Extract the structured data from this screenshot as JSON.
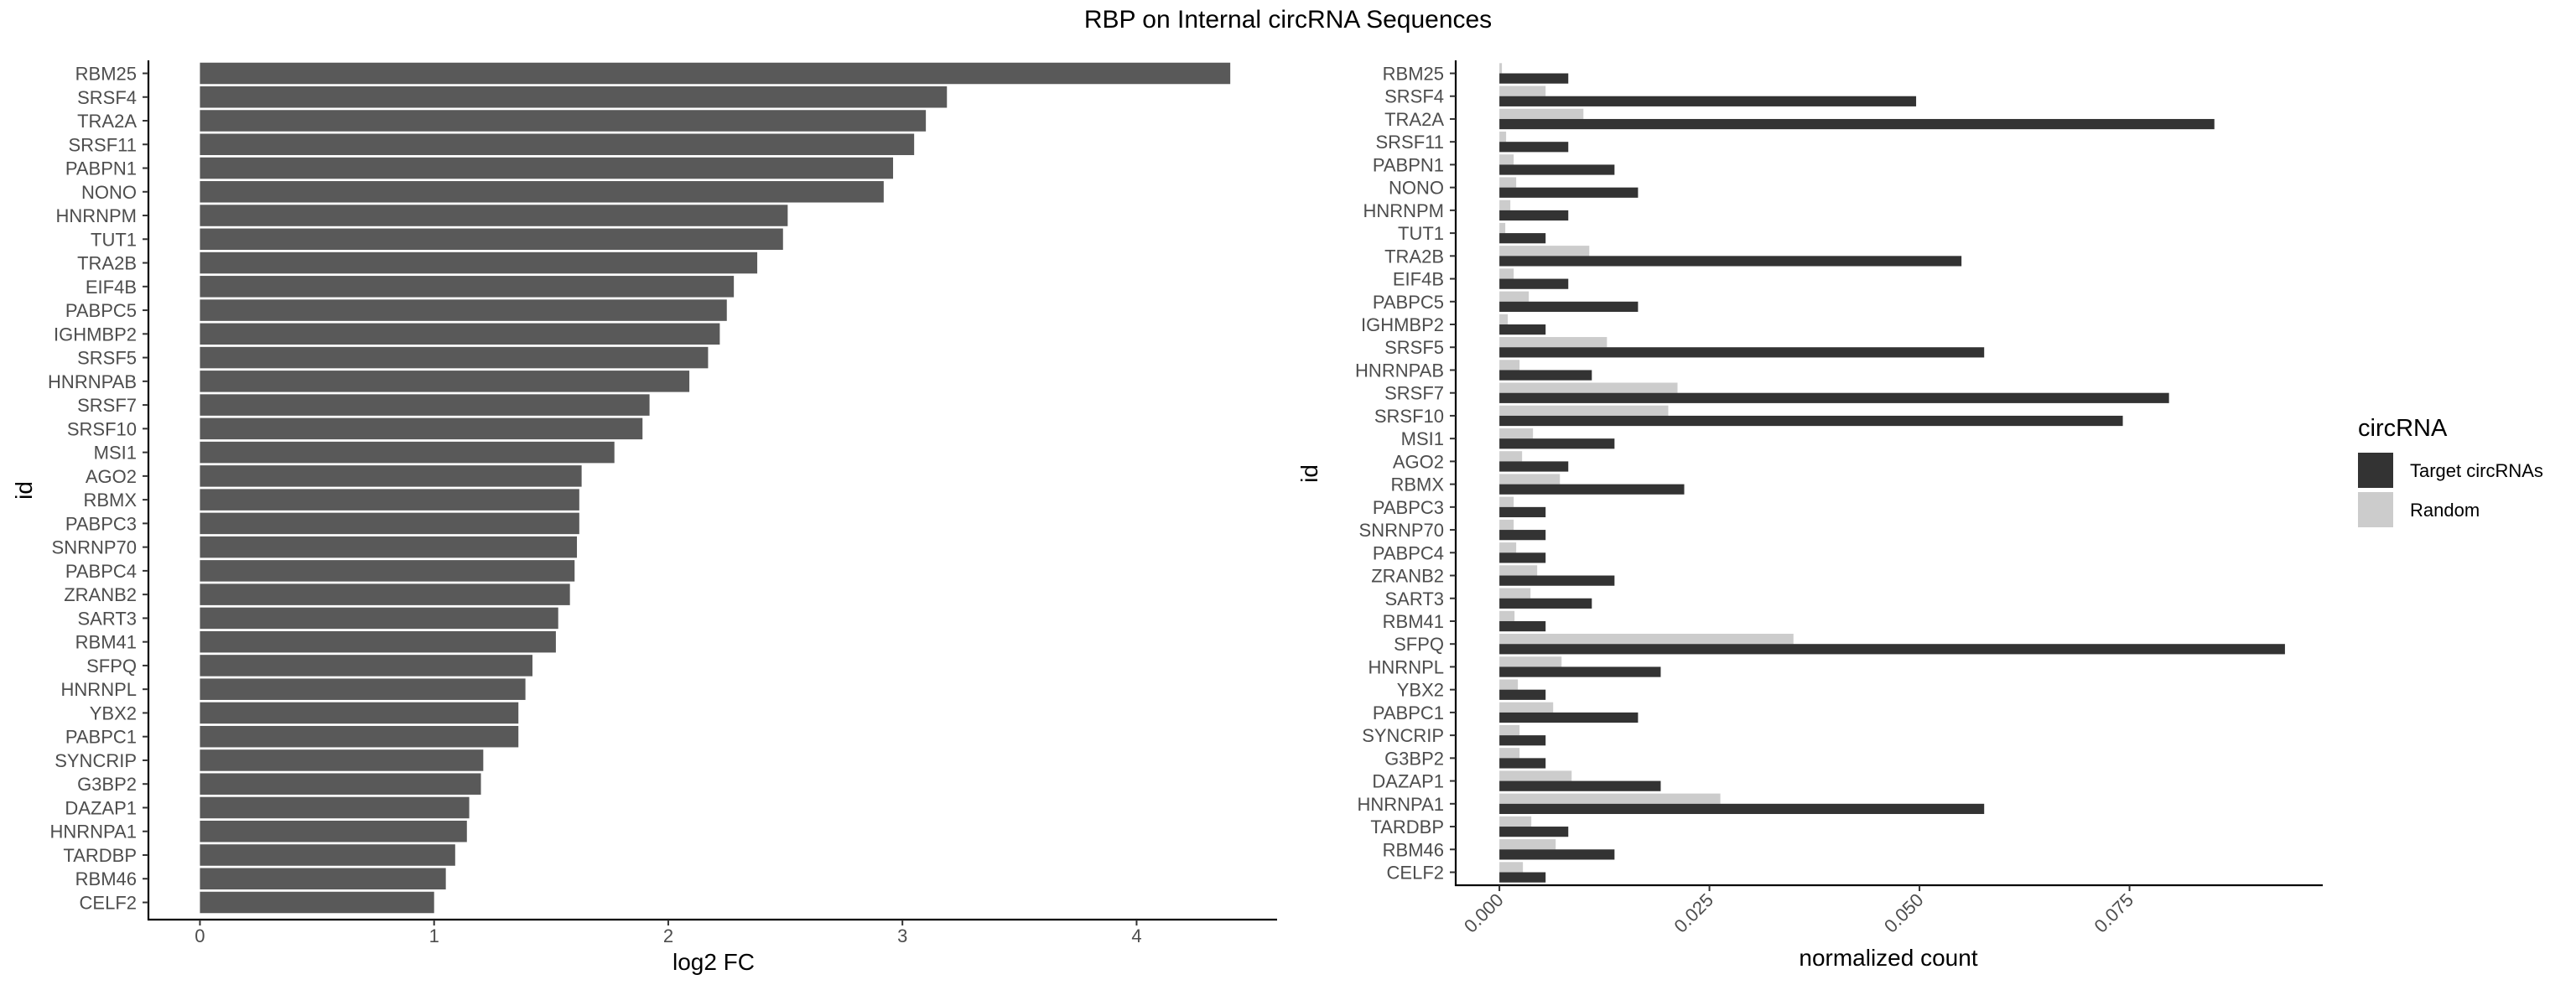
{
  "title": "RBP on Internal circRNA Sequences",
  "colors": {
    "left_bar": "#595959",
    "target": "#333333",
    "random": "#cccccc",
    "axis": "#000000",
    "tick_text": "#4d4d4d"
  },
  "chart_data": [
    {
      "type": "bar",
      "orientation": "horizontal",
      "categories": [
        "RBM25",
        "SRSF4",
        "TRA2A",
        "SRSF11",
        "PABPN1",
        "NONO",
        "HNRNPM",
        "TUT1",
        "TRA2B",
        "EIF4B",
        "PABPC5",
        "IGHMBP2",
        "SRSF5",
        "HNRNPAB",
        "SRSF7",
        "SRSF10",
        "MSI1",
        "AGO2",
        "RBMX",
        "PABPC3",
        "SNRNP70",
        "PABPC4",
        "ZRANB2",
        "SART3",
        "RBM41",
        "SFPQ",
        "HNRNPL",
        "YBX2",
        "PABPC1",
        "SYNCRIP",
        "G3BP2",
        "DAZAP1",
        "HNRNPA1",
        "TARDBP",
        "RBM46",
        "CELF2"
      ],
      "values": [
        4.4,
        3.19,
        3.1,
        3.05,
        2.96,
        2.92,
        2.51,
        2.49,
        2.38,
        2.28,
        2.25,
        2.22,
        2.17,
        2.09,
        1.92,
        1.89,
        1.77,
        1.63,
        1.62,
        1.62,
        1.61,
        1.6,
        1.58,
        1.53,
        1.52,
        1.42,
        1.39,
        1.36,
        1.36,
        1.21,
        1.2,
        1.15,
        1.14,
        1.09,
        1.05,
        1.0
      ],
      "xlabel": "log2 FC",
      "ylabel": "id",
      "xlim": [
        -0.22,
        4.6
      ],
      "xticks": [
        "0",
        "1",
        "2",
        "3",
        "4"
      ],
      "grid": false
    },
    {
      "type": "bar",
      "orientation": "horizontal",
      "categories": [
        "RBM25",
        "SRSF4",
        "TRA2A",
        "SRSF11",
        "PABPN1",
        "NONO",
        "HNRNPM",
        "TUT1",
        "TRA2B",
        "EIF4B",
        "PABPC5",
        "IGHMBP2",
        "SRSF5",
        "HNRNPAB",
        "SRSF7",
        "SRSF10",
        "MSI1",
        "AGO2",
        "RBMX",
        "PABPC3",
        "SNRNP70",
        "PABPC4",
        "ZRANB2",
        "SART3",
        "RBM41",
        "SFPQ",
        "HNRNPL",
        "YBX2",
        "PABPC1",
        "SYNCRIP",
        "G3BP2",
        "DAZAP1",
        "HNRNPA1",
        "TARDBP",
        "RBM46",
        "CELF2"
      ],
      "series": [
        {
          "name": "Target circRNAs",
          "values": [
            0.0082,
            0.0496,
            0.0851,
            0.0082,
            0.0137,
            0.0165,
            0.0082,
            0.0055,
            0.055,
            0.0082,
            0.0165,
            0.0055,
            0.0577,
            0.011,
            0.0797,
            0.0742,
            0.0137,
            0.0082,
            0.022,
            0.0055,
            0.0055,
            0.0055,
            0.0137,
            0.011,
            0.0055,
            0.0935,
            0.0192,
            0.0055,
            0.0165,
            0.0055,
            0.0055,
            0.0192,
            0.0577,
            0.0082,
            0.0137,
            0.0055
          ]
        },
        {
          "name": "Random",
          "values": [
            0.0003,
            0.0055,
            0.01,
            0.0008,
            0.0017,
            0.002,
            0.0013,
            0.0007,
            0.0107,
            0.0017,
            0.0035,
            0.001,
            0.0128,
            0.0024,
            0.0212,
            0.0201,
            0.004,
            0.0027,
            0.0072,
            0.0017,
            0.0017,
            0.002,
            0.0045,
            0.0037,
            0.0018,
            0.035,
            0.0074,
            0.0022,
            0.0064,
            0.0024,
            0.0024,
            0.0086,
            0.0263,
            0.0038,
            0.0067,
            0.0028
          ]
        }
      ],
      "xlabel": "normalized count",
      "ylabel": "id",
      "xlim": [
        -0.0052,
        0.098
      ],
      "xticks": [
        "0.000",
        "0.025",
        "0.050",
        "0.075"
      ],
      "legend": {
        "title": "circRNA",
        "position": "right"
      },
      "grid": false
    }
  ]
}
